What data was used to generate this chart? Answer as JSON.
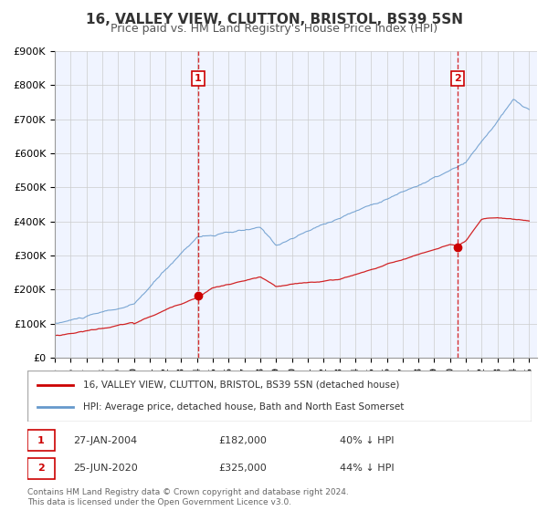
{
  "title": "16, VALLEY VIEW, CLUTTON, BRISTOL, BS39 5SN",
  "subtitle": "Price paid vs. HM Land Registry's House Price Index (HPI)",
  "xlabel": "",
  "ylabel": "",
  "ylim": [
    0,
    900000
  ],
  "yticks": [
    0,
    100000,
    200000,
    300000,
    400000,
    500000,
    600000,
    700000,
    800000,
    900000
  ],
  "ytick_labels": [
    "£0",
    "£100K",
    "£200K",
    "£300K",
    "£400K",
    "£500K",
    "£600K",
    "£700K",
    "£800K",
    "£900K"
  ],
  "xlim_start": 1995.0,
  "xlim_end": 2025.5,
  "xticks": [
    1995,
    1996,
    1997,
    1998,
    1999,
    2000,
    2001,
    2002,
    2003,
    2004,
    2005,
    2006,
    2007,
    2008,
    2009,
    2010,
    2011,
    2012,
    2013,
    2014,
    2015,
    2016,
    2017,
    2018,
    2019,
    2020,
    2021,
    2022,
    2023,
    2024,
    2025
  ],
  "red_color": "#cc0000",
  "blue_color": "#6699cc",
  "sale1_x": 2004.07,
  "sale1_y": 182000,
  "sale1_label": "1",
  "sale1_date": "27-JAN-2004",
  "sale1_price": "£182,000",
  "sale1_hpi": "40% ↓ HPI",
  "sale2_x": 2020.49,
  "sale2_y": 325000,
  "sale2_label": "2",
  "sale2_date": "25-JUN-2020",
  "sale2_price": "£325,000",
  "sale2_hpi": "44% ↓ HPI",
  "legend_red_label": "16, VALLEY VIEW, CLUTTON, BRISTOL, BS39 5SN (detached house)",
  "legend_blue_label": "HPI: Average price, detached house, Bath and North East Somerset",
  "footer_line1": "Contains HM Land Registry data © Crown copyright and database right 2024.",
  "footer_line2": "This data is licensed under the Open Government Licence v3.0.",
  "background_color": "#f0f4ff",
  "grid_color": "#cccccc",
  "title_fontsize": 11,
  "subtitle_fontsize": 9,
  "tick_fontsize": 8
}
